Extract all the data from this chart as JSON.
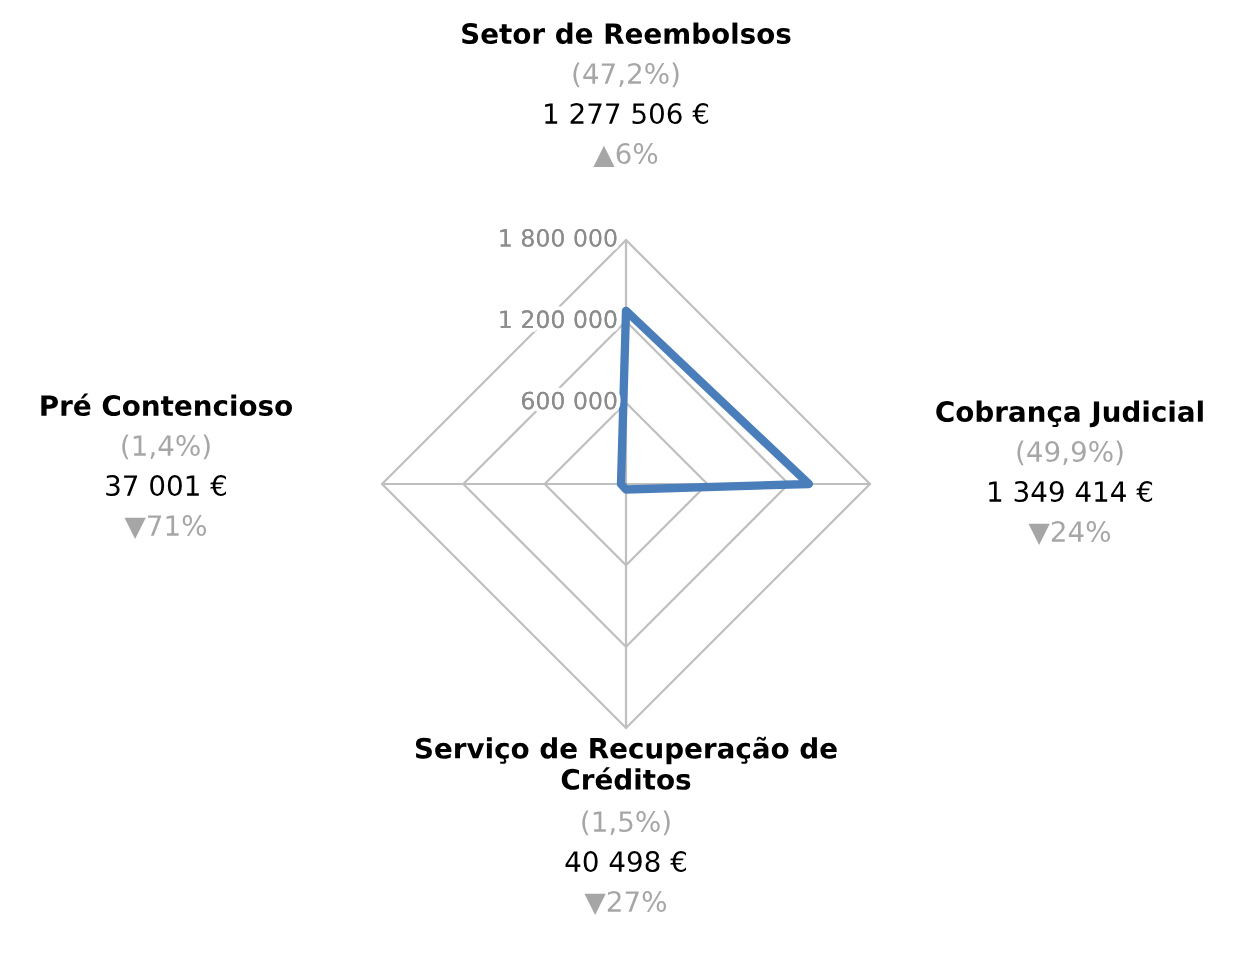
{
  "chart_data": {
    "type": "radar",
    "categories": [
      "Setor de Reembolsos",
      "Cobrança Judicial",
      "Serviço de Recuperação de Créditos",
      "Pré Contencioso"
    ],
    "series": [
      {
        "color": "#4a7ebb",
        "values": [
          1277506,
          1349414,
          40498,
          37001
        ]
      }
    ],
    "value_labels": [
      "1 277 506 €",
      "1 349 414 €",
      "40 498 €",
      "37 001 €"
    ],
    "annotations": [
      "(47,2%)",
      "▲6%",
      "(49,9%)",
      "▼24%",
      "(1,5%)",
      "▼27%",
      "(1,4%)",
      "▼71%"
    ],
    "ylim": [
      0,
      1800000
    ],
    "yticks": [
      {
        "value": 600000,
        "label": "600 000"
      },
      {
        "value": 1200000,
        "label": "1 200 000"
      },
      {
        "value": 1800000,
        "label": "1 800 000"
      }
    ],
    "grid": true
  }
}
